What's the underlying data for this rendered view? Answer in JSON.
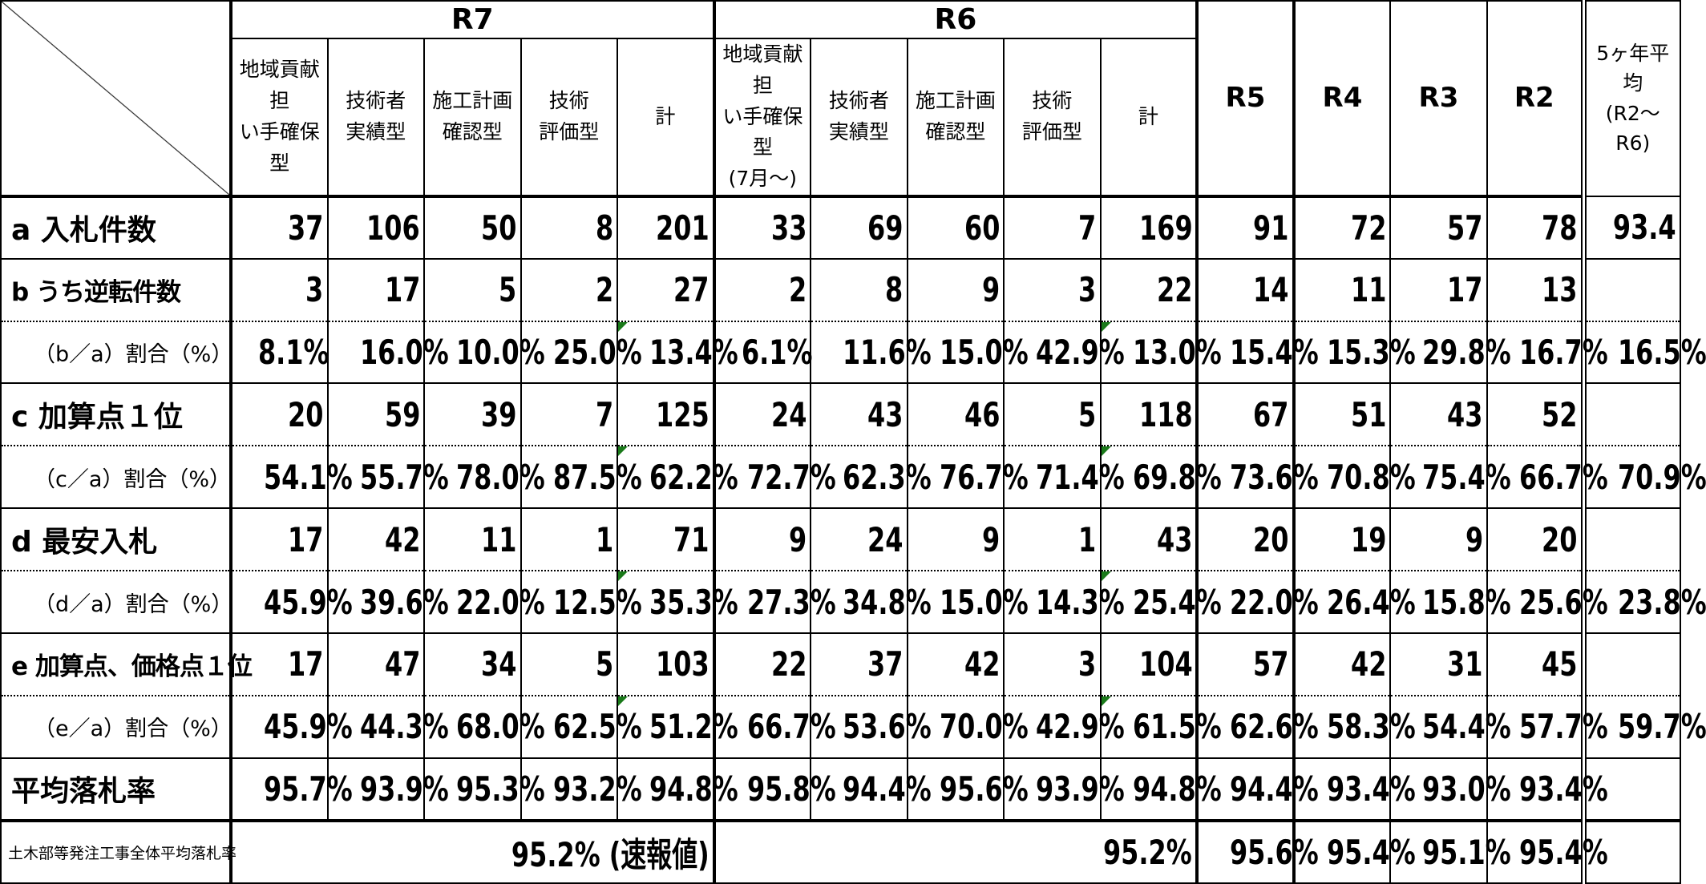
{
  "header": {
    "groups": [
      {
        "label": "R7",
        "columns": [
          "地域貢献担\nい手確保型",
          "技術者\n実績型",
          "施工計画\n確認型",
          "技術\n評価型",
          "計"
        ]
      },
      {
        "label": "R6",
        "columns": [
          "地域貢献担\nい手確保型\n(7月～)",
          "技術者\n実績型",
          "施工計画\n確認型",
          "技術\n評価型",
          "計"
        ]
      }
    ],
    "single": [
      "R5",
      "R4",
      "R3",
      "R2",
      "5ヶ年平均\n(R2～R6)"
    ]
  },
  "rows": [
    {
      "kind": "count",
      "label": "a  入札件数",
      "cells": [
        37,
        106,
        50,
        8,
        201,
        33,
        69,
        60,
        7,
        169,
        91,
        72,
        57,
        78,
        93.4
      ]
    },
    {
      "kind": "count",
      "label": "b  うち逆転件数",
      "cells": [
        3,
        17,
        5,
        2,
        27,
        2,
        8,
        9,
        3,
        22,
        14,
        11,
        17,
        13,
        null
      ]
    },
    {
      "kind": "ratio",
      "label": "（b／a）割合（%）",
      "cells": [
        "8.1%",
        "16.0%",
        "10.0%",
        "25.0%",
        "13.4%",
        "6.1%",
        "11.6%",
        "15.0%",
        "42.9%",
        "13.0%",
        "15.4%",
        "15.3%",
        "29.8%",
        "16.7%",
        "16.5%"
      ]
    },
    {
      "kind": "count",
      "label": "c  加算点１位",
      "cells": [
        20,
        59,
        39,
        7,
        125,
        24,
        43,
        46,
        5,
        118,
        67,
        51,
        43,
        52,
        null
      ]
    },
    {
      "kind": "ratio",
      "label": "（c／a）割合（%）",
      "cells": [
        "54.1%",
        "55.7%",
        "78.0%",
        "87.5%",
        "62.2%",
        "72.7%",
        "62.3%",
        "76.7%",
        "71.4%",
        "69.8%",
        "73.6%",
        "70.8%",
        "75.4%",
        "66.7%",
        "70.9%"
      ]
    },
    {
      "kind": "count",
      "label": "d  最安入札",
      "cells": [
        17,
        42,
        11,
        1,
        71,
        9,
        24,
        9,
        1,
        43,
        20,
        19,
        9,
        20,
        null
      ]
    },
    {
      "kind": "ratio",
      "label": "（d／a）割合（%）",
      "cells": [
        "45.9%",
        "39.6%",
        "22.0%",
        "12.5%",
        "35.3%",
        "27.3%",
        "34.8%",
        "15.0%",
        "14.3%",
        "25.4%",
        "22.0%",
        "26.4%",
        "15.8%",
        "25.6%",
        "23.8%"
      ]
    },
    {
      "kind": "count",
      "label": "e  加算点、価格点１位",
      "cells": [
        17,
        47,
        34,
        5,
        103,
        22,
        37,
        42,
        3,
        104,
        57,
        42,
        31,
        45,
        null
      ]
    },
    {
      "kind": "ratio",
      "label": "（e／a）割合（%）",
      "cells": [
        "45.9%",
        "44.3%",
        "68.0%",
        "62.5%",
        "51.2%",
        "66.7%",
        "53.6%",
        "70.0%",
        "42.9%",
        "61.5%",
        "62.6%",
        "58.3%",
        "54.4%",
        "57.7%",
        "59.7%"
      ]
    },
    {
      "kind": "solo",
      "label": "平均落札率",
      "cells": [
        "95.7%",
        "93.9%",
        "95.3%",
        "93.2%",
        "94.8%",
        "95.8%",
        "94.4%",
        "95.6%",
        "93.9%",
        "94.8%",
        "94.4%",
        "93.4%",
        "93.0%",
        "93.4%",
        null
      ]
    }
  ],
  "footer": {
    "label": "土木部等発注工事全体平均落札率",
    "r7": "95.2% (速報値)",
    "r6": "95.2%",
    "cells": [
      "95.6%",
      "95.4%",
      "95.1%",
      "95.4%"
    ]
  }
}
